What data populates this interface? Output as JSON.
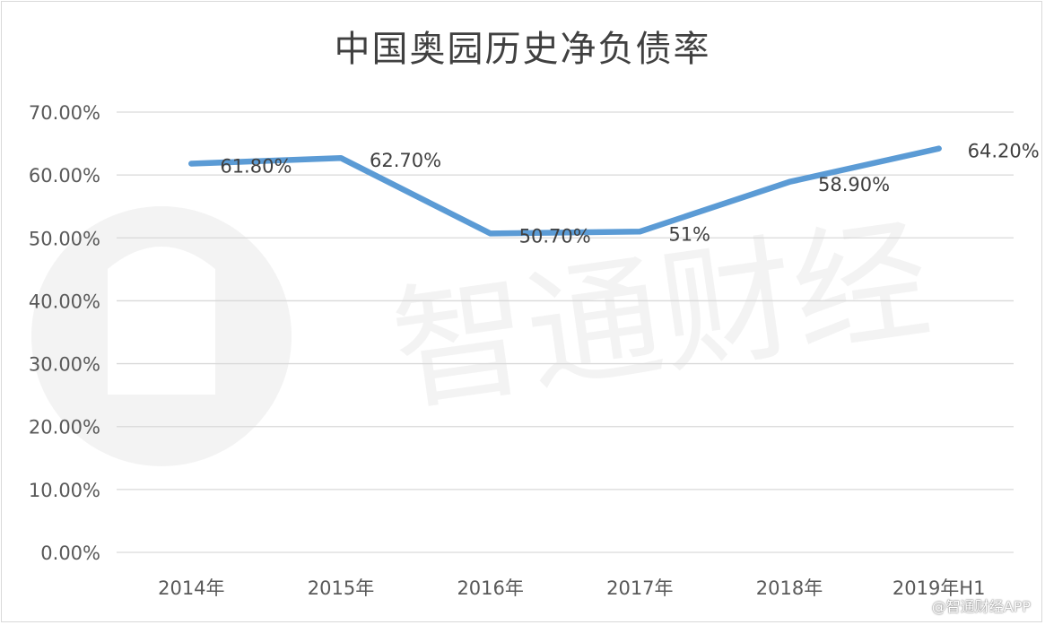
{
  "chart_data": {
    "type": "line",
    "title": "中国奥园历史净负债率",
    "categories": [
      "2014年",
      "2015年",
      "2016年",
      "2017年",
      "2018年",
      "2019年H1"
    ],
    "series": [
      {
        "values": [
          61.8,
          62.7,
          50.7,
          51.0,
          58.9,
          64.2
        ],
        "labels": [
          "61.80%",
          "62.70%",
          "50.70%",
          "51%",
          "58.90%",
          "64.20%"
        ]
      }
    ],
    "y_ticks": [
      "0.00%",
      "10.00%",
      "20.00%",
      "30.00%",
      "40.00%",
      "50.00%",
      "60.00%",
      "70.00%"
    ],
    "ylim": [
      0,
      70
    ],
    "grid": true,
    "colors": {
      "series": "#5b9bd5",
      "grid": "#d9d9d9"
    }
  },
  "watermark": {
    "brand_text": "智通财经",
    "corner_text": "@智通财经APP"
  }
}
